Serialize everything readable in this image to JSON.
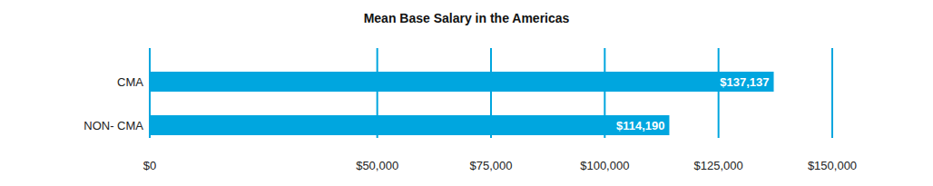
{
  "chart_data": {
    "type": "bar",
    "title": "Mean Base Salary in the Americas",
    "orientation": "horizontal",
    "categories": [
      "CMA",
      "NON- CMA"
    ],
    "values": [
      137137,
      114190
    ],
    "value_labels": [
      "$137,137",
      "$114,190"
    ],
    "data_labels": true,
    "color": "#00a6df",
    "xlim": [
      0,
      150000
    ],
    "xticks": [
      {
        "value": 0,
        "label": "$0"
      },
      {
        "value": 50000,
        "label": "$50,000"
      },
      {
        "value": 75000,
        "label": "$75,000"
      },
      {
        "value": 100000,
        "label": "$100,000"
      },
      {
        "value": 125000,
        "label": "$125,000"
      },
      {
        "value": 150000,
        "label": "$150,000"
      }
    ],
    "grid": true
  }
}
